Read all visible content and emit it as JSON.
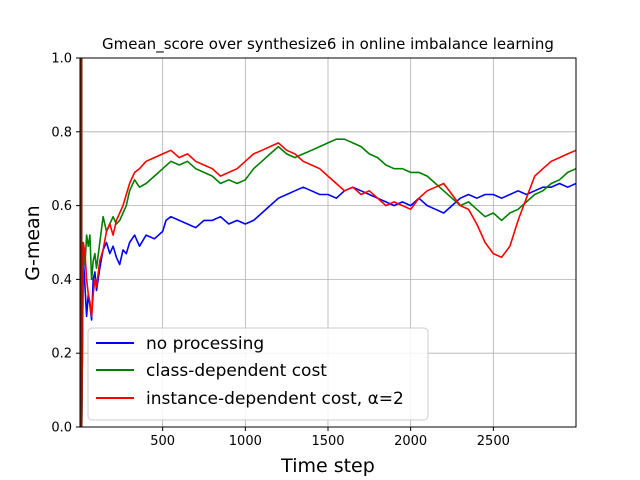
{
  "chart_data": {
    "type": "line",
    "title": "Gmean_score over synthesize6 in online imbalance learning",
    "xlabel": "Time step",
    "ylabel": "G-mean",
    "xlim": [
      0,
      3000
    ],
    "ylim": [
      0,
      1.0
    ],
    "xticks": [
      500,
      1000,
      1500,
      2000,
      2500
    ],
    "xtick_labels": [
      "500",
      "1000",
      "1500",
      "2000",
      "2500"
    ],
    "yticks": [
      0.0,
      0.2,
      0.4,
      0.6,
      0.8,
      1.0
    ],
    "ytick_labels": [
      "0.0",
      "0.2",
      "0.4",
      "0.6",
      "0.8",
      "1.0"
    ],
    "grid": true,
    "legend_position": "lower-left",
    "legend_entries": [
      {
        "label": "no processing",
        "color": "#0000ff"
      },
      {
        "label": "class-dependent cost",
        "color": "#008000"
      },
      {
        "label": "instance-dependent cost, α=2",
        "color": "#ff0000"
      }
    ],
    "series": [
      {
        "name": "no processing",
        "color": "#0000ff",
        "x": [
          10,
          20,
          30,
          40,
          50,
          60,
          70,
          80,
          90,
          100,
          120,
          140,
          160,
          180,
          200,
          220,
          240,
          260,
          280,
          300,
          330,
          360,
          400,
          450,
          500,
          520,
          550,
          600,
          650,
          700,
          750,
          800,
          850,
          900,
          950,
          1000,
          1050,
          1100,
          1150,
          1200,
          1250,
          1300,
          1350,
          1400,
          1450,
          1500,
          1550,
          1600,
          1650,
          1700,
          1750,
          1800,
          1850,
          1900,
          1950,
          2000,
          2050,
          2100,
          2150,
          2200,
          2250,
          2300,
          2350,
          2400,
          2450,
          2500,
          2550,
          2600,
          2650,
          2700,
          2750,
          2800,
          2850,
          2900,
          2950,
          3000
        ],
        "y": [
          0.0,
          0.46,
          0.38,
          0.3,
          0.36,
          0.33,
          0.29,
          0.4,
          0.42,
          0.37,
          0.43,
          0.48,
          0.5,
          0.47,
          0.49,
          0.46,
          0.44,
          0.48,
          0.47,
          0.5,
          0.52,
          0.49,
          0.52,
          0.51,
          0.53,
          0.56,
          0.57,
          0.56,
          0.55,
          0.54,
          0.56,
          0.56,
          0.57,
          0.55,
          0.56,
          0.55,
          0.56,
          0.58,
          0.6,
          0.62,
          0.63,
          0.64,
          0.65,
          0.64,
          0.63,
          0.63,
          0.62,
          0.64,
          0.65,
          0.64,
          0.63,
          0.62,
          0.61,
          0.6,
          0.61,
          0.6,
          0.62,
          0.6,
          0.59,
          0.58,
          0.6,
          0.62,
          0.63,
          0.62,
          0.63,
          0.63,
          0.62,
          0.63,
          0.64,
          0.63,
          0.64,
          0.65,
          0.65,
          0.66,
          0.65,
          0.66
        ]
      },
      {
        "name": "class-dependent cost",
        "color": "#008000",
        "x": [
          10,
          20,
          30,
          40,
          50,
          60,
          70,
          80,
          90,
          100,
          120,
          140,
          160,
          180,
          200,
          220,
          240,
          260,
          280,
          300,
          330,
          360,
          400,
          450,
          500,
          550,
          600,
          650,
          700,
          750,
          800,
          850,
          900,
          950,
          1000,
          1050,
          1100,
          1150,
          1200,
          1250,
          1300,
          1350,
          1400,
          1450,
          1500,
          1550,
          1600,
          1650,
          1700,
          1750,
          1800,
          1850,
          1900,
          1950,
          2000,
          2050,
          2100,
          2150,
          2200,
          2250,
          2300,
          2350,
          2400,
          2450,
          2500,
          2550,
          2600,
          2650,
          2700,
          2750,
          2800,
          2850,
          2900,
          2950,
          3000
        ],
        "y": [
          0.0,
          0.5,
          0.44,
          0.52,
          0.49,
          0.52,
          0.4,
          0.45,
          0.47,
          0.43,
          0.5,
          0.57,
          0.53,
          0.55,
          0.57,
          0.55,
          0.56,
          0.58,
          0.6,
          0.64,
          0.67,
          0.65,
          0.66,
          0.68,
          0.7,
          0.72,
          0.71,
          0.72,
          0.7,
          0.69,
          0.68,
          0.66,
          0.67,
          0.66,
          0.67,
          0.7,
          0.72,
          0.74,
          0.76,
          0.74,
          0.73,
          0.74,
          0.75,
          0.76,
          0.77,
          0.78,
          0.78,
          0.77,
          0.76,
          0.74,
          0.73,
          0.71,
          0.7,
          0.7,
          0.69,
          0.69,
          0.68,
          0.66,
          0.64,
          0.62,
          0.6,
          0.61,
          0.59,
          0.57,
          0.58,
          0.56,
          0.58,
          0.59,
          0.61,
          0.63,
          0.64,
          0.66,
          0.67,
          0.69,
          0.7
        ]
      },
      {
        "name": "instance-dependent cost, α=2",
        "color": "#ff0000",
        "x": [
          10,
          20,
          30,
          40,
          50,
          60,
          70,
          80,
          90,
          100,
          120,
          140,
          160,
          180,
          200,
          220,
          240,
          260,
          280,
          300,
          330,
          360,
          400,
          450,
          500,
          550,
          600,
          650,
          700,
          750,
          800,
          850,
          900,
          950,
          1000,
          1050,
          1100,
          1150,
          1200,
          1250,
          1300,
          1350,
          1400,
          1450,
          1500,
          1550,
          1600,
          1650,
          1700,
          1750,
          1800,
          1850,
          1900,
          1950,
          2000,
          2050,
          2100,
          2150,
          2200,
          2250,
          2300,
          2350,
          2400,
          2450,
          2500,
          2550,
          2600,
          2650,
          2700,
          2750,
          2800,
          2850,
          2900,
          2950,
          3000
        ],
        "y": [
          0.0,
          0.5,
          0.47,
          0.4,
          0.36,
          0.34,
          0.3,
          0.36,
          0.4,
          0.38,
          0.45,
          0.48,
          0.53,
          0.55,
          0.52,
          0.56,
          0.58,
          0.6,
          0.63,
          0.66,
          0.69,
          0.7,
          0.72,
          0.73,
          0.74,
          0.75,
          0.73,
          0.74,
          0.72,
          0.71,
          0.7,
          0.68,
          0.69,
          0.7,
          0.72,
          0.74,
          0.75,
          0.76,
          0.77,
          0.75,
          0.74,
          0.72,
          0.71,
          0.7,
          0.68,
          0.66,
          0.64,
          0.65,
          0.63,
          0.64,
          0.62,
          0.6,
          0.61,
          0.6,
          0.59,
          0.62,
          0.64,
          0.65,
          0.66,
          0.63,
          0.6,
          0.59,
          0.55,
          0.5,
          0.47,
          0.46,
          0.49,
          0.56,
          0.62,
          0.68,
          0.7,
          0.72,
          0.73,
          0.74,
          0.75
        ]
      }
    ]
  }
}
